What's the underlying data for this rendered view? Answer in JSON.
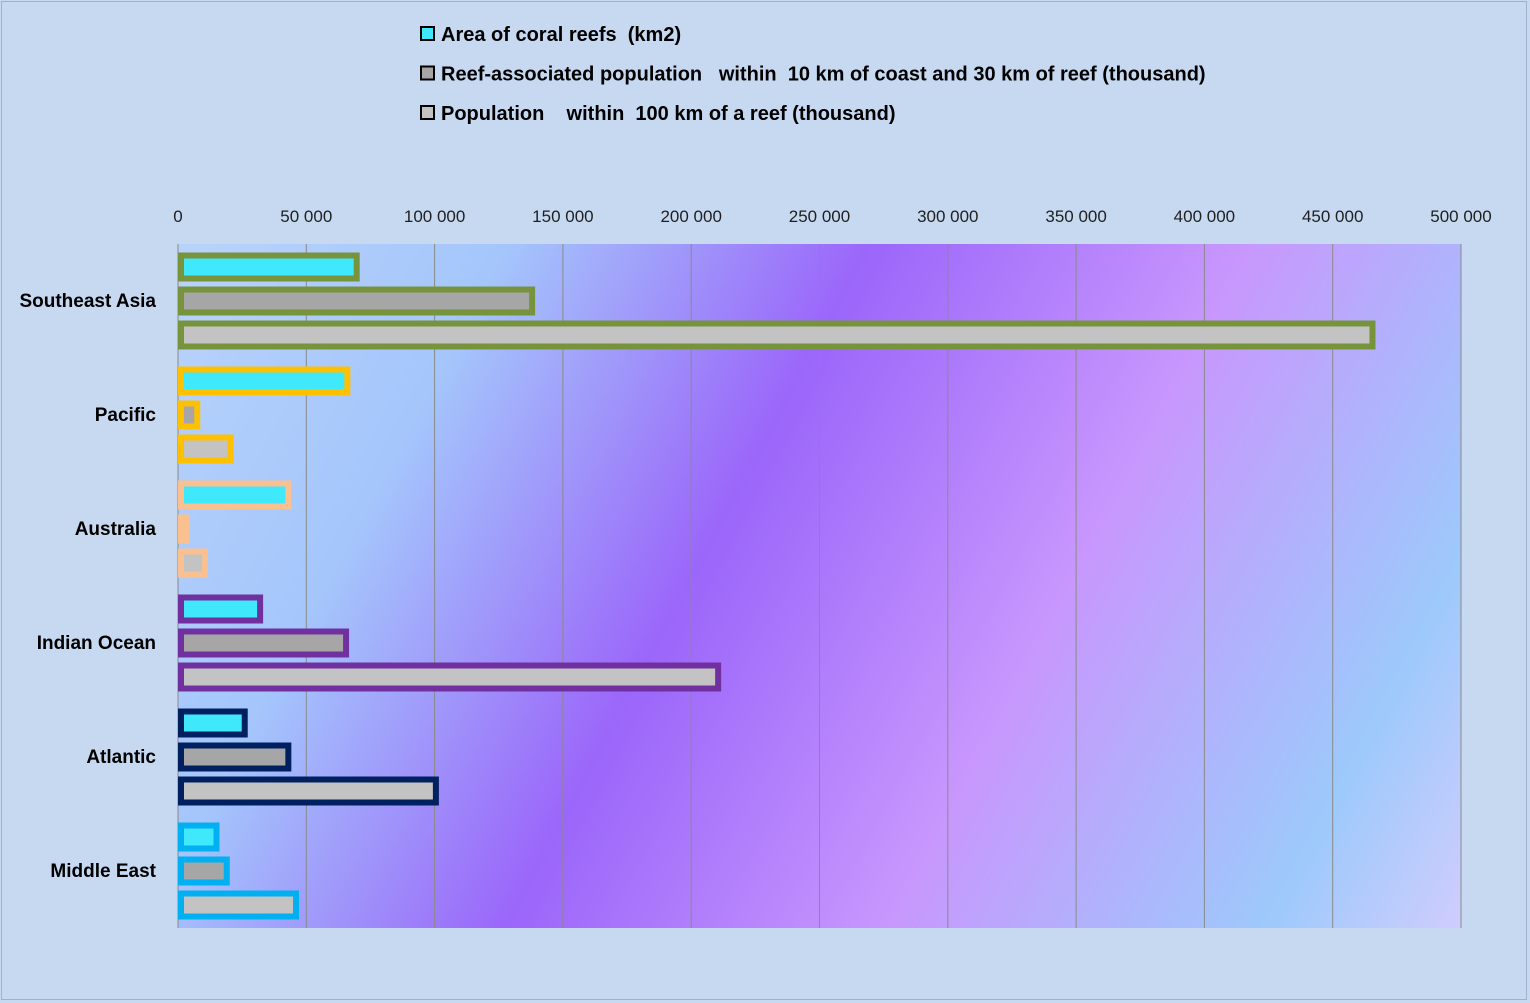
{
  "chart_data": {
    "type": "bar",
    "orientation": "horizontal",
    "title": "",
    "xlabel": "",
    "ylabel": "",
    "xlim": [
      0,
      500000
    ],
    "x_ticks": [
      0,
      50000,
      100000,
      150000,
      200000,
      250000,
      300000,
      350000,
      400000,
      450000,
      500000
    ],
    "x_tick_labels": [
      "0",
      "50 000",
      "100 000",
      "150 000",
      "200 000",
      "250 000",
      "300 000",
      "350 000",
      "400 000",
      "450 000",
      "500 000"
    ],
    "grid": "vertical",
    "legend_position": "top",
    "categories": [
      "Southeast Asia",
      "Pacific",
      "Australia",
      "Indian Ocean",
      "Atlantic",
      "Middle East"
    ],
    "series": [
      {
        "name": "Area of coral reefs  (km2)",
        "fill_color": "#3fe9fb",
        "values": [
          69640,
          66000,
          43000,
          32000,
          26000,
          15000
        ]
      },
      {
        "name": "Reef-associated population   within  10 km of coast and 30 km of reef (thousand)",
        "fill_color": "#a6a6a6",
        "values": [
          138000,
          7500,
          3500,
          65500,
          43000,
          19000
        ]
      },
      {
        "name": "Population    within  100 km of a reef (thousand)",
        "fill_color": "#c3c3c3",
        "values": [
          465500,
          20500,
          10500,
          210500,
          100500,
          46000
        ]
      }
    ],
    "category_outline_colors": [
      "#77933c",
      "#ffc000",
      "#fac090",
      "#7030a0",
      "#002060",
      "#00b0f0"
    ]
  }
}
